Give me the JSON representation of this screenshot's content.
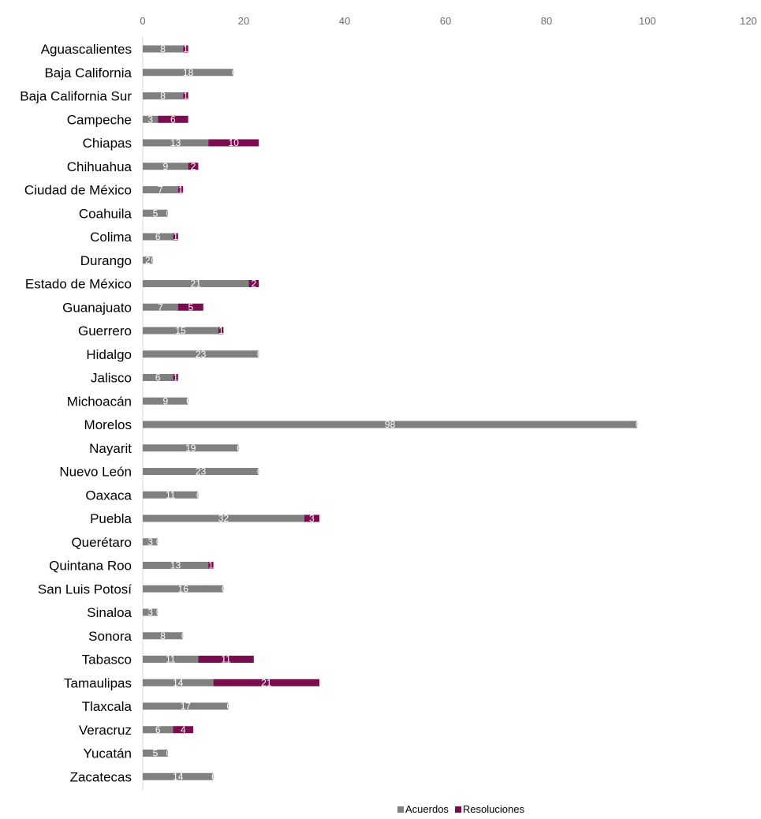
{
  "chart_data": {
    "type": "bar",
    "orientation": "horizontal",
    "stacked": true,
    "categories": [
      "Aguascalientes",
      "Baja California",
      "Baja California Sur",
      "Campeche",
      "Chiapas",
      "Chihuahua",
      "Ciudad de México",
      "Coahuila",
      "Colima",
      "Durango",
      "Estado de México",
      "Guanajuato",
      "Guerrero",
      "Hidalgo",
      "Jalisco",
      "Michoacán",
      "Morelos",
      "Nayarit",
      "Nuevo León",
      "Oaxaca",
      "Puebla",
      "Querétaro",
      "Quintana Roo",
      "San Luis Potosí",
      "Sinaloa",
      "Sonora",
      "Tabasco",
      "Tamaulipas",
      "Tlaxcala",
      "Veracruz",
      "Yucatán",
      "Zacatecas"
    ],
    "series": [
      {
        "name": "Acuerdos",
        "color": "#808080",
        "values": [
          8,
          18,
          8,
          3,
          13,
          9,
          7,
          5,
          6,
          2,
          21,
          7,
          15,
          23,
          6,
          9,
          98,
          19,
          23,
          11,
          32,
          3,
          13,
          16,
          3,
          8,
          11,
          14,
          17,
          6,
          5,
          14
        ]
      },
      {
        "name": "Resoluciones",
        "color": "#7b0c4f",
        "values": [
          1,
          0,
          1,
          6,
          10,
          2,
          1,
          0,
          1,
          0,
          2,
          5,
          1,
          0,
          1,
          0,
          0,
          0,
          0,
          0,
          3,
          0,
          1,
          0,
          0,
          0,
          11,
          21,
          0,
          4,
          0,
          0
        ]
      }
    ],
    "xlim": [
      0,
      120
    ],
    "xticks": [
      "0",
      "20",
      "40",
      "60",
      "80",
      "100",
      "120"
    ],
    "tick_step": 20,
    "legend_position": "bottom",
    "grid": false,
    "title": "",
    "xlabel": "",
    "ylabel": ""
  }
}
